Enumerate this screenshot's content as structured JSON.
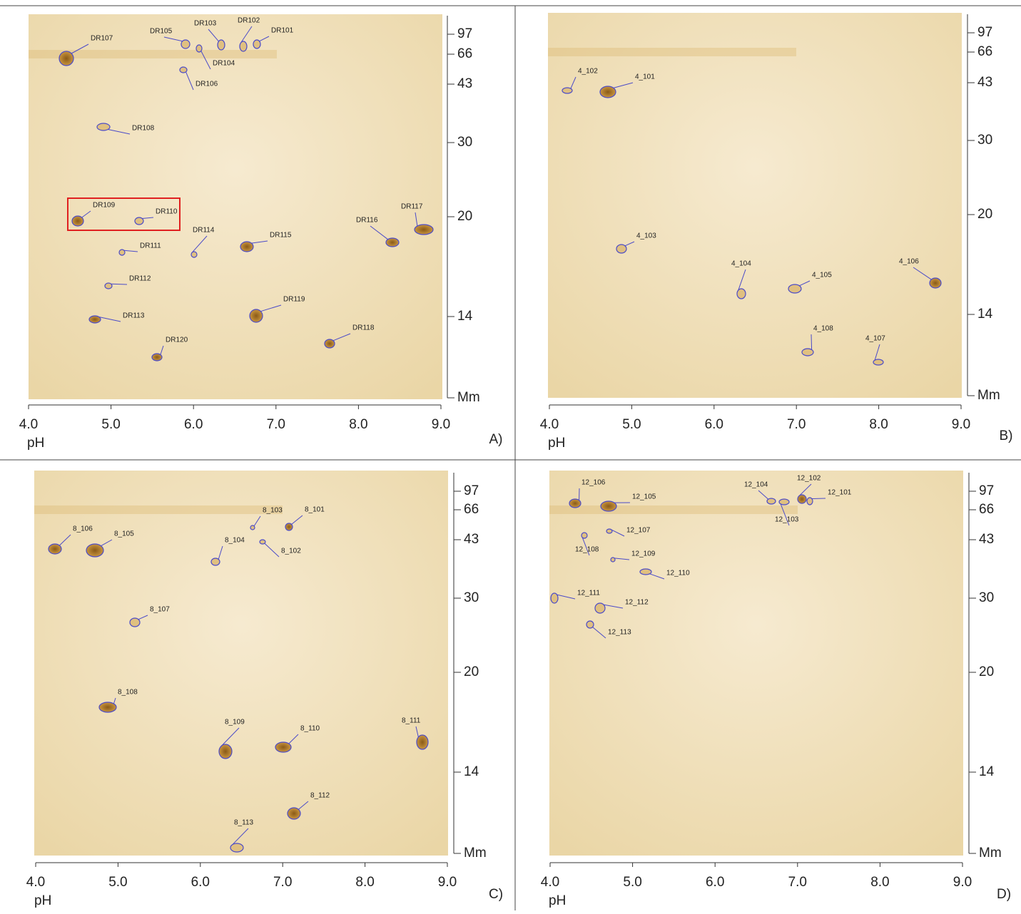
{
  "panels": [
    {
      "letter": "A)",
      "x_label": "pH",
      "x_ticks": [
        "4.0",
        "5.0",
        "6.0",
        "7.0",
        "8.0",
        "9.0"
      ],
      "y_ticks": [
        "97",
        "66",
        "43",
        "30",
        "20",
        "14",
        "Mm"
      ],
      "spots": [
        "DR107",
        "DR105",
        "DR103",
        "DR102",
        "DR101",
        "DR104",
        "DR106",
        "DR108",
        "DR109",
        "DR110",
        "DR117",
        "DR116",
        "DR114",
        "DR115",
        "DR111",
        "DR112",
        "DR113",
        "DR119",
        "DR118",
        "DR120"
      ]
    },
    {
      "letter": "B)",
      "x_label": "pH",
      "x_ticks": [
        "4.0",
        "5.0",
        "6.0",
        "7.0",
        "8.0",
        "9.0"
      ],
      "y_ticks": [
        "97",
        "66",
        "43",
        "30",
        "20",
        "14",
        "Mm"
      ],
      "spots": [
        "4_102",
        "4_101",
        "4_103",
        "4_104",
        "4_105",
        "4_106",
        "4_108",
        "4_107"
      ]
    },
    {
      "letter": "C)",
      "x_label": "pH",
      "x_ticks": [
        "4.0",
        "5.0",
        "6.0",
        "7.0",
        "8.0",
        "9.0"
      ],
      "y_ticks": [
        "97",
        "66",
        "43",
        "30",
        "20",
        "14",
        "Mm"
      ],
      "spots": [
        "8_106",
        "8_105",
        "8_103",
        "8_101",
        "8_104",
        "8_102",
        "8_107",
        "8_108",
        "8_109",
        "8_110",
        "8_111",
        "8_112",
        "8_113"
      ]
    },
    {
      "letter": "D)",
      "x_label": "pH",
      "x_ticks": [
        "4.0",
        "5.0",
        "6.0",
        "7.0",
        "8.0",
        "9.0"
      ],
      "y_ticks": [
        "97",
        "66",
        "43",
        "30",
        "20",
        "14",
        "Mm"
      ],
      "spots": [
        "12_106",
        "12_105",
        "12_104",
        "12_102",
        "12_103",
        "12_101",
        "12_107",
        "12_108",
        "12_109",
        "12_110",
        "12_111",
        "12_112",
        "12_113"
      ]
    }
  ]
}
